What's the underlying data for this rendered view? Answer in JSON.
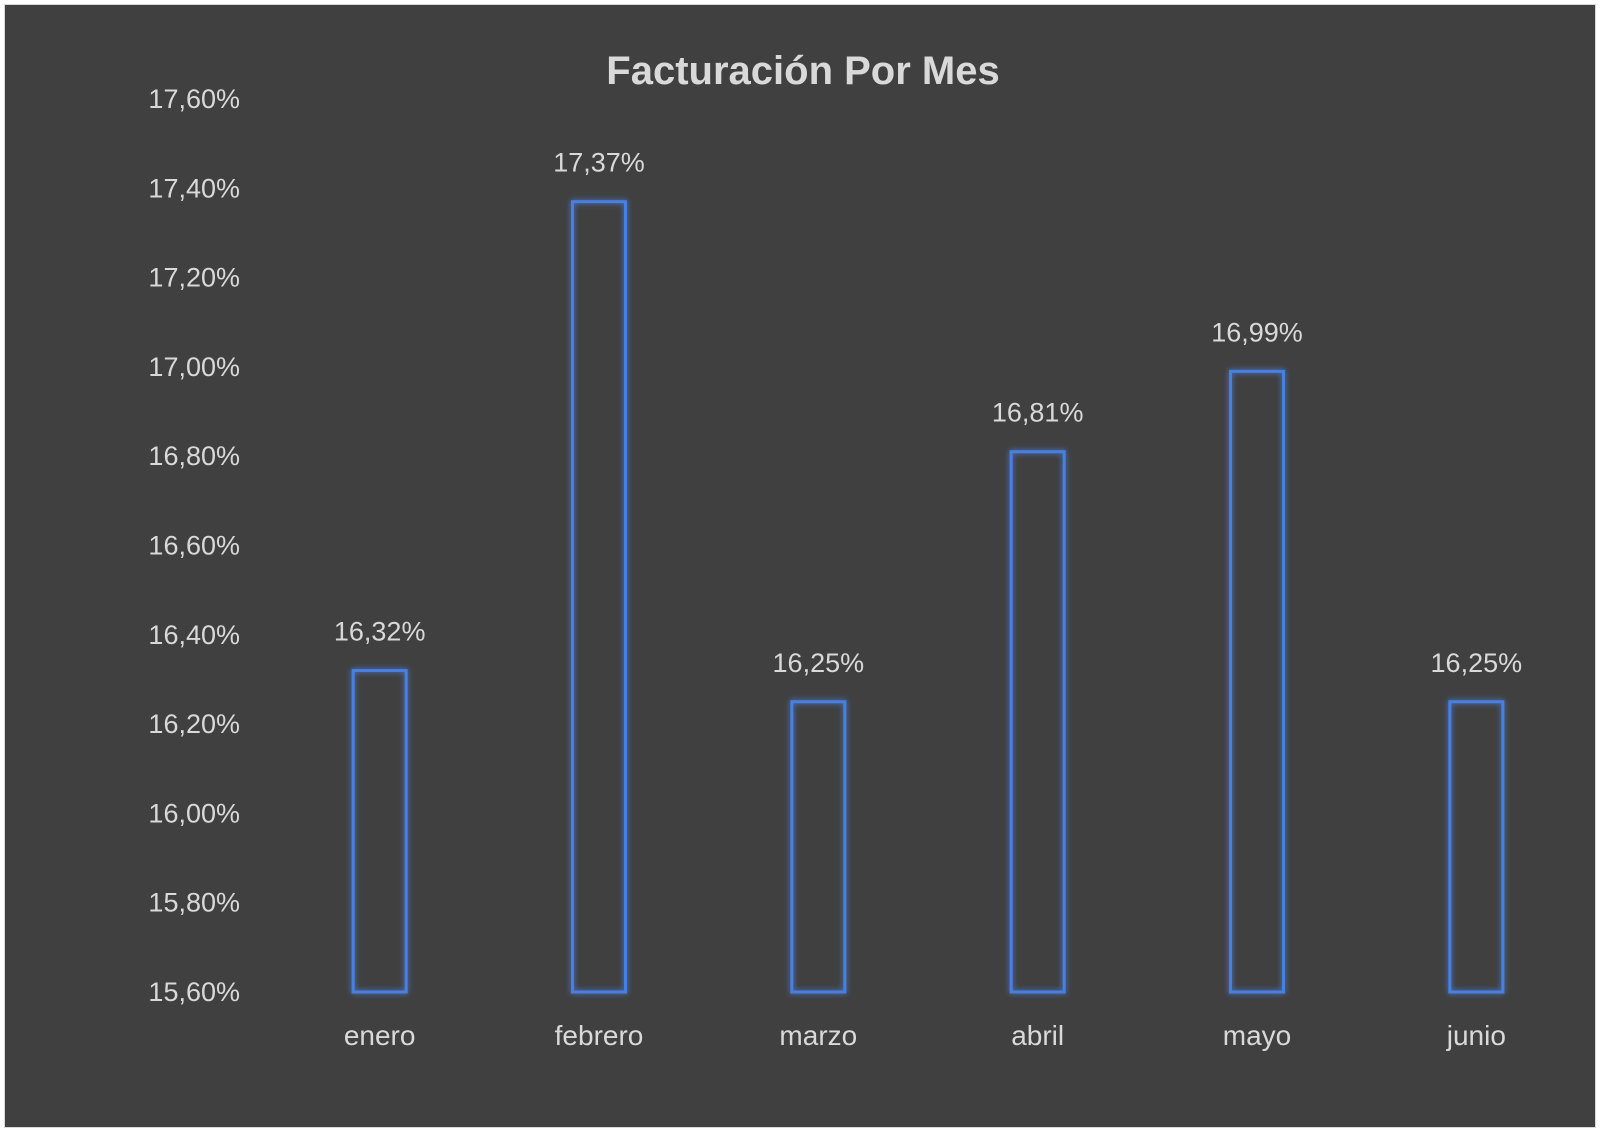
{
  "chart_data": {
    "type": "bar",
    "title": "Facturación Por Mes",
    "categories": [
      "enero",
      "febrero",
      "marzo",
      "abril",
      "mayo",
      "junio"
    ],
    "values": [
      16.32,
      17.37,
      16.25,
      16.81,
      16.99,
      16.25
    ],
    "data_labels": [
      "16,32%",
      "17,37%",
      "16,25%",
      "16,81%",
      "16,99%",
      "16,25%"
    ],
    "ylim": [
      15.6,
      17.6
    ],
    "yticks": [
      15.6,
      15.8,
      16.0,
      16.2,
      16.4,
      16.6,
      16.8,
      17.0,
      17.2,
      17.4,
      17.6
    ],
    "ytick_labels": [
      "15,60%",
      "15,80%",
      "16,00%",
      "16,20%",
      "16,40%",
      "16,60%",
      "16,80%",
      "17,00%",
      "17,20%",
      "17,40%",
      "17,60%"
    ],
    "xlabel": "",
    "ylabel": "",
    "grid": false,
    "legend": "none",
    "colors": {
      "background": "#404040",
      "bar_outline": "#4a7fe0",
      "text": "#d9d9d9"
    }
  }
}
